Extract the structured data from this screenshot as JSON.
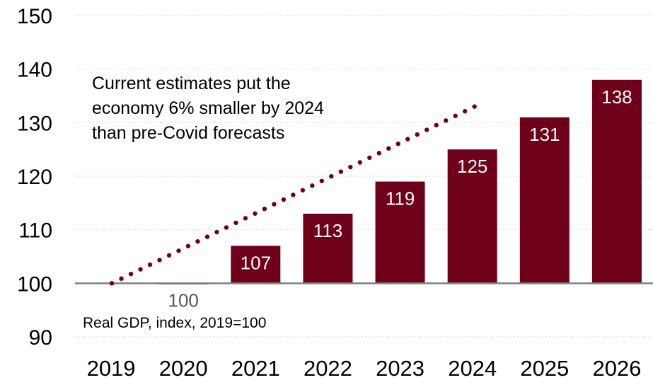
{
  "chart_data": {
    "type": "bar",
    "categories": [
      "2019",
      "2020",
      "2021",
      "2022",
      "2023",
      "2024",
      "2025",
      "2026"
    ],
    "values": [
      100,
      99.8,
      107,
      113,
      119,
      125,
      131,
      138
    ],
    "data_labels": [
      "",
      "100",
      "107",
      "113",
      "119",
      "125",
      "131",
      "138"
    ],
    "ylim": [
      90,
      150
    ],
    "yticks": [
      "90",
      "100",
      "110",
      "120",
      "130",
      "140",
      "150"
    ],
    "grid": true,
    "baseline": 100,
    "colors": {
      "bar": "#6f0019",
      "dots": "#6f0019",
      "grid": "#d6d6d6",
      "baseline": "#7f7f7f",
      "label_below": "#595959"
    },
    "forecast_line": {
      "x_from": "2019",
      "x_to": "2024",
      "y_from": 100,
      "y_to": 133
    },
    "annotation": [
      "Current estimates put the",
      "economy 6% smaller by 2024",
      "than pre-Covid forecasts"
    ],
    "subtitle": "Real GDP, index, 2019=100"
  }
}
